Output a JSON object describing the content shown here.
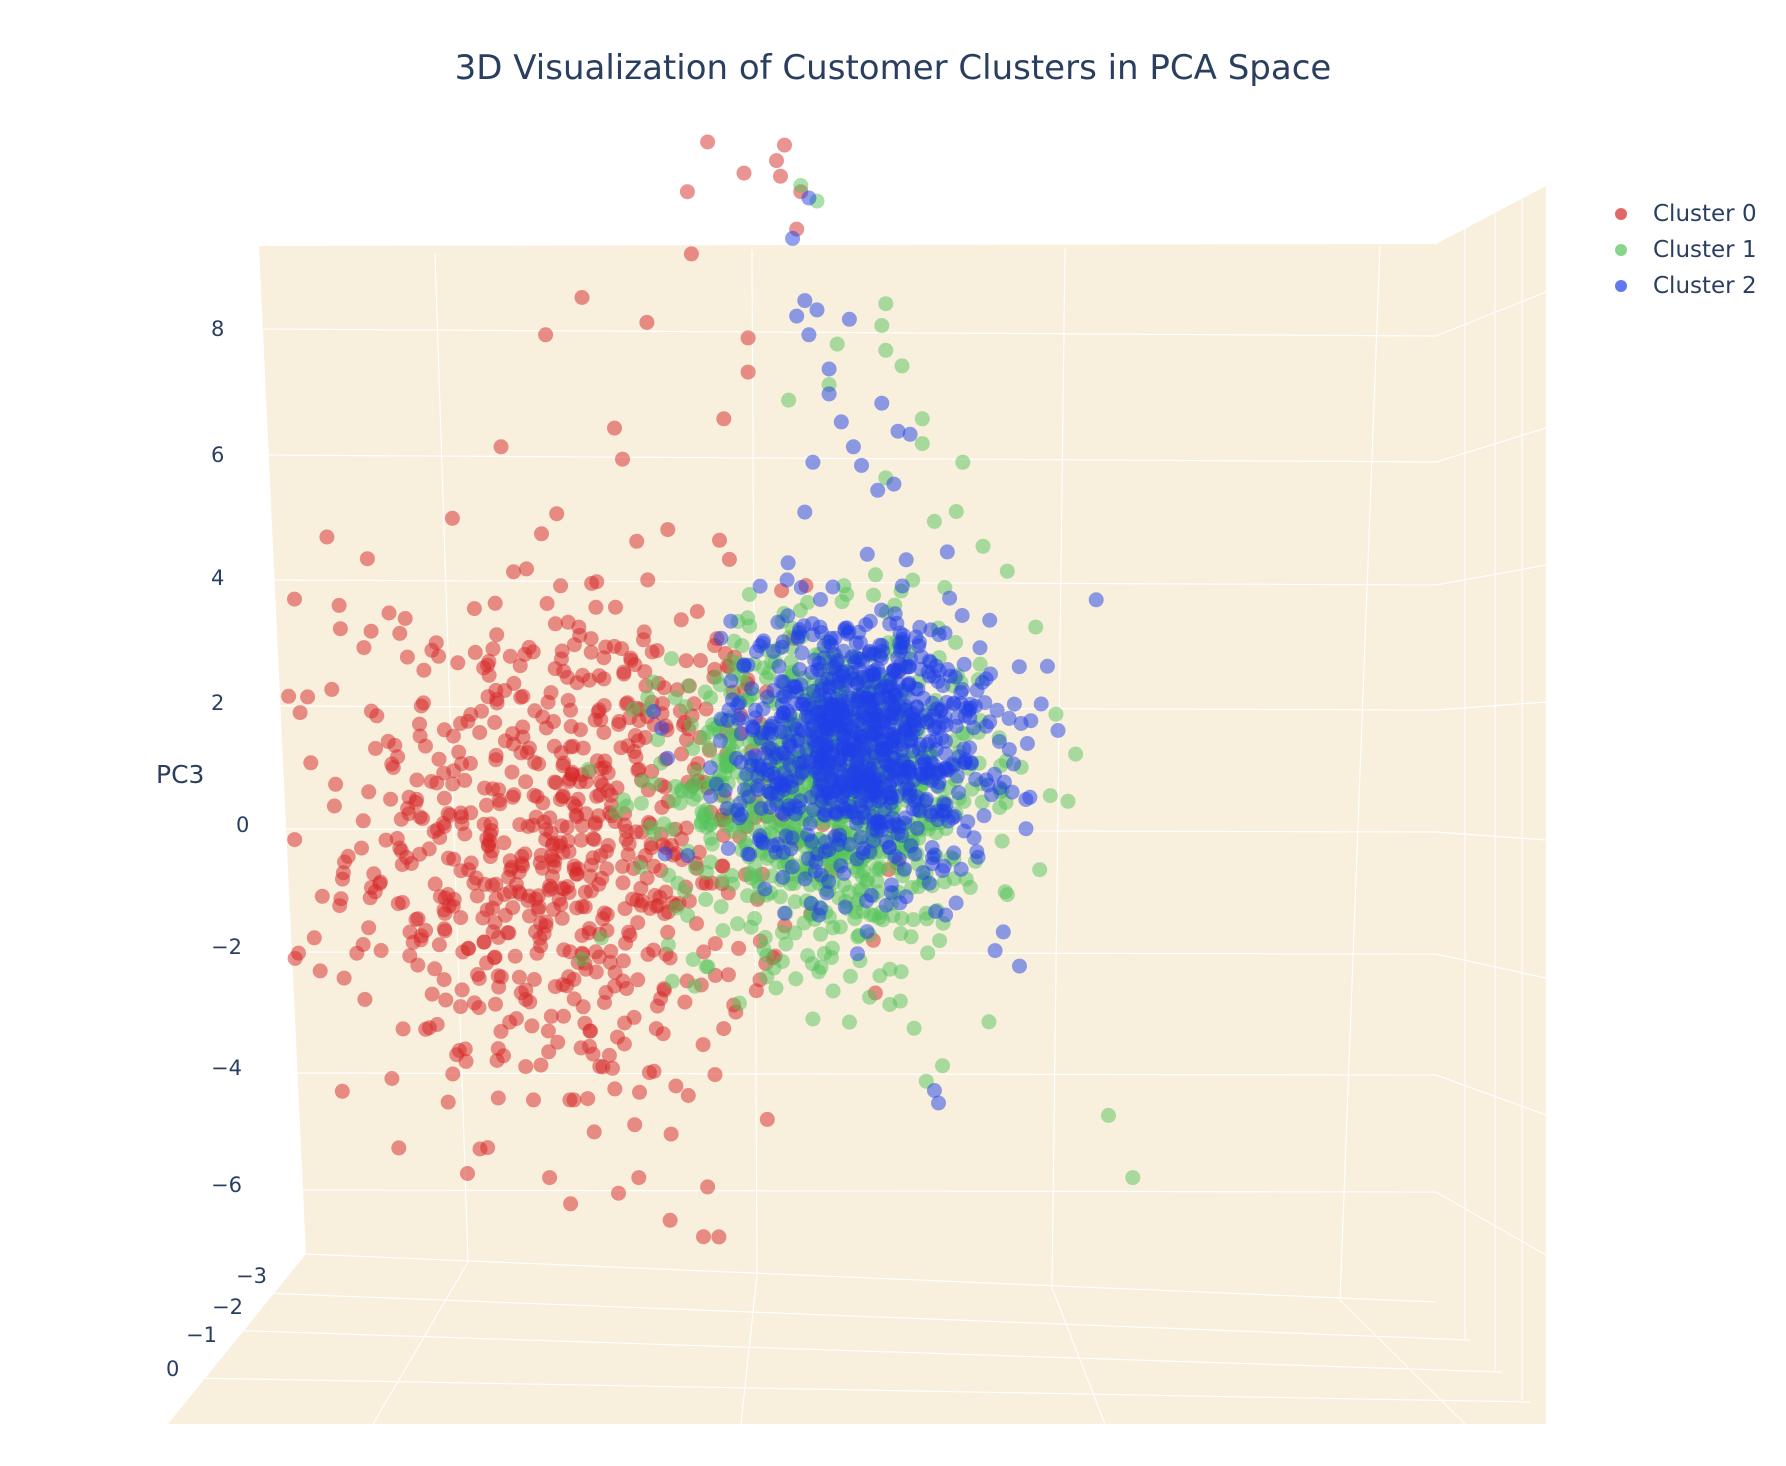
{
  "chart_data": {
    "type": "scatter",
    "title": "3D Visualization of Customer Clusters in PCA Space",
    "zlabel": "PC3",
    "z_ticks": [
      "8",
      "6",
      "4",
      "2",
      "0",
      "−2",
      "−4",
      "−6"
    ],
    "depth_ticks": [
      "−3",
      "−2",
      "−1",
      "0"
    ],
    "background_color": "#f8efdc",
    "gridline_color": "#ffffff",
    "legend_position": "top-right",
    "series": [
      {
        "name": "Cluster 0",
        "color": "#d62728",
        "cluster": {
          "n": 720,
          "cx": -2.1,
          "cz": -2.2,
          "sx": 1.35,
          "sz": 2.1
        },
        "points": [
          [
            -0.4,
            9.1
          ],
          [
            0.55,
            9.05
          ],
          [
            0.45,
            8.8
          ],
          [
            0.05,
            8.6
          ],
          [
            0.5,
            8.55
          ],
          [
            -0.65,
            8.3
          ],
          [
            0.75,
            8.3
          ],
          [
            0.7,
            7.7
          ],
          [
            -0.6,
            7.3
          ],
          [
            -1.95,
            6.6
          ],
          [
            -1.15,
            6.2
          ],
          [
            -2.4,
            6.0
          ],
          [
            0.1,
            5.95
          ],
          [
            0.1,
            5.4
          ],
          [
            -0.2,
            4.65
          ],
          [
            -1.55,
            4.5
          ],
          [
            -2.95,
            4.2
          ],
          [
            -1.45,
            4.0
          ],
          [
            -3.55,
            3.05
          ],
          [
            -2.45,
            2.8
          ],
          [
            -4.6,
            2.4
          ],
          [
            -4.95,
            1.65
          ],
          [
            -4.2,
            1.2
          ],
          [
            -3.75,
            1.05
          ],
          [
            -3.1,
            0.75
          ],
          [
            -3.05,
            0.95
          ],
          [
            -4.55,
            -0.05
          ],
          [
            -4.5,
            -0.65
          ],
          [
            -4.3,
            -0.9
          ],
          [
            -3.95,
            -0.45
          ],
          [
            -3.65,
            -0.35
          ],
          [
            -3.45,
            -0.25
          ],
          [
            -3.95,
            -1.75
          ],
          [
            -3.65,
            -1.45
          ],
          [
            -3.35,
            -2.6
          ],
          [
            -4.2,
            -2.25
          ],
          [
            -4.0,
            -3.4
          ],
          [
            -3.65,
            -3.55
          ],
          [
            -3.8,
            -4.6
          ],
          [
            -3.45,
            -4.8
          ],
          [
            -2.95,
            -5.2
          ],
          [
            -2.55,
            -6.3
          ],
          [
            -2.05,
            -6.3
          ],
          [
            -2.35,
            -7.55
          ],
          [
            -1.5,
            -7.8
          ],
          [
            -1.25,
            -7.55
          ],
          [
            -0.4,
            -7.7
          ],
          [
            -0.45,
            -8.5
          ],
          [
            -1.3,
            -6.7
          ],
          [
            -2.1,
            -6.3
          ],
          [
            -0.85,
            -6.85
          ],
          [
            -5.1,
            2.75
          ],
          [
            -5.5,
            1.75
          ]
        ]
      },
      {
        "name": "Cluster 1",
        "color": "#54c45a",
        "cluster": {
          "n": 900,
          "cx": 1.1,
          "cz": -1.3,
          "sx": 0.95,
          "sz": 1.3
        },
        "points": [
          [
            0.75,
            8.4
          ],
          [
            0.95,
            8.15
          ],
          [
            1.8,
            6.5
          ],
          [
            1.75,
            6.15
          ],
          [
            1.2,
            5.85
          ],
          [
            1.8,
            5.75
          ],
          [
            2.0,
            5.5
          ],
          [
            0.6,
            4.95
          ],
          [
            1.1,
            5.2
          ],
          [
            2.25,
            4.65
          ],
          [
            2.25,
            4.25
          ],
          [
            1.8,
            3.7
          ],
          [
            2.75,
            3.95
          ],
          [
            2.4,
            3.0
          ],
          [
            3.0,
            2.6
          ],
          [
            3.3,
            2.2
          ],
          [
            3.65,
            1.3
          ],
          [
            3.9,
            -0.1
          ],
          [
            4.05,
            -1.5
          ],
          [
            3.7,
            -2.6
          ],
          [
            3.3,
            -3.0
          ],
          [
            2.3,
            -3.3
          ],
          [
            1.85,
            -4.2
          ],
          [
            1.6,
            -4.65
          ],
          [
            2.15,
            -5.15
          ],
          [
            2.5,
            -5.75
          ],
          [
            2.3,
            -6.0
          ],
          [
            1.15,
            -4.55
          ],
          [
            0.9,
            -5.0
          ],
          [
            1.35,
            -5.05
          ],
          [
            4.55,
            -6.55
          ],
          [
            4.85,
            -7.55
          ]
        ]
      },
      {
        "name": "Cluster 2",
        "color": "#1f3fe8",
        "cluster": {
          "n": 900,
          "cx": 1.5,
          "cz": -0.55,
          "sx": 0.8,
          "sz": 1.05
        },
        "points": [
          [
            0.85,
            8.2
          ],
          [
            0.65,
            7.55
          ],
          [
            0.8,
            6.55
          ],
          [
            0.7,
            6.3
          ],
          [
            0.95,
            6.4
          ],
          [
            1.35,
            6.25
          ],
          [
            0.85,
            6.0
          ],
          [
            1.1,
            5.45
          ],
          [
            1.1,
            5.05
          ],
          [
            1.75,
            4.9
          ],
          [
            1.25,
            4.6
          ],
          [
            1.4,
            4.2
          ],
          [
            1.95,
            4.45
          ],
          [
            2.1,
            4.4
          ],
          [
            1.5,
            3.9
          ],
          [
            1.9,
            3.6
          ],
          [
            1.7,
            3.5
          ],
          [
            0.9,
            3.95
          ],
          [
            0.8,
            3.15
          ],
          [
            3.25,
            -3.6
          ],
          [
            3.45,
            -4.15
          ],
          [
            3.15,
            -3.9
          ],
          [
            2.4,
            -6.15
          ],
          [
            2.45,
            -6.35
          ],
          [
            1.3,
            -3.2
          ],
          [
            1.45,
            -3.95
          ]
        ]
      }
    ]
  }
}
